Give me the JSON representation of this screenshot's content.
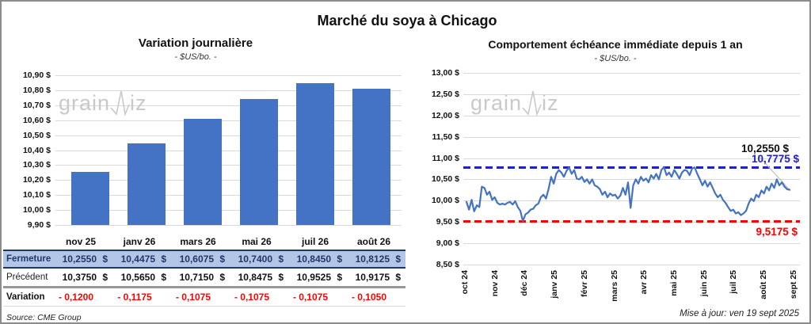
{
  "page": {
    "title": "Marché du soya à Chicago",
    "source": "Source: CME Group",
    "updated": "Mise à jour: ven 19 sept 2025",
    "watermark": {
      "pre": "grain",
      "post": "iz"
    }
  },
  "left_chart": {
    "title": "Variation journalière",
    "subtitle": "- $US/bo. -"
  },
  "right_chart": {
    "title": "Comportement échéance immédiate depuis 1 an",
    "subtitle": "- $US/bo. -",
    "annotations": {
      "last": "10,2550 $",
      "upper": "10,7775 $",
      "lower": "9,5175 $"
    }
  },
  "table": {
    "columns": [
      "nov 25",
      "janv 26",
      "mars 26",
      "mai 26",
      "juil 26",
      "août 26"
    ],
    "rows": [
      {
        "label": "Fermeture",
        "values": [
          "10,2550",
          "10,4475",
          "10,6075",
          "10,7400",
          "10,8450",
          "10,8125"
        ],
        "suffix": "$",
        "style": "close"
      },
      {
        "label": "Précédent",
        "values": [
          "10,3750",
          "10,5650",
          "10,7150",
          "10,8475",
          "10,9525",
          "10,9175"
        ],
        "suffix": "$",
        "style": "prev"
      },
      {
        "label": "Variation",
        "values": [
          "- 0,1200",
          "- 0,1175",
          "- 0,1075",
          "- 0,1075",
          "- 0,1075",
          "- 0,1050"
        ],
        "suffix": "",
        "style": "var"
      }
    ]
  },
  "chart_data": [
    {
      "type": "bar",
      "title": "Variation journalière",
      "subtitle": "- $US/bo. -",
      "categories": [
        "nov 25",
        "janv 26",
        "mars 26",
        "mai 26",
        "juil 26",
        "août 26"
      ],
      "values": [
        10.255,
        10.4475,
        10.6075,
        10.74,
        10.845,
        10.8125
      ],
      "ylabel": "$US/bo.",
      "ylim": [
        9.9,
        10.9
      ],
      "ytick_step": 0.1,
      "grid": true,
      "bar_color": "#4472C4"
    },
    {
      "type": "line",
      "title": "Comportement échéance immédiate depuis 1 an",
      "subtitle": "- $US/bo. -",
      "x_ticks": [
        "oct 24",
        "nov 24",
        "déc 24",
        "janv 25",
        "févr 25",
        "mars 25",
        "avr 25",
        "mai 25",
        "juin 25",
        "juil 25",
        "août 25",
        "sept 25"
      ],
      "ylim": [
        8.5,
        13.0
      ],
      "ytick_step": 0.5,
      "grid": true,
      "line_color": "#4472C4",
      "values": [
        9.97,
        9.79,
        10.02,
        9.75,
        9.89,
        9.85,
        10.33,
        10.3,
        10.14,
        10.21,
        10.02,
        10.08,
        9.95,
        9.91,
        9.93,
        9.91,
        9.95,
        9.97,
        9.91,
        9.99,
        9.85,
        9.76,
        9.52,
        9.68,
        9.72,
        9.79,
        9.81,
        9.89,
        9.93,
        10.08,
        10.14,
        10.05,
        10.27,
        10.56,
        10.4,
        10.63,
        10.72,
        10.66,
        10.56,
        10.7,
        10.78,
        10.63,
        10.72,
        10.52,
        10.5,
        10.56,
        10.44,
        10.5,
        10.4,
        10.5,
        10.36,
        10.33,
        10.27,
        10.14,
        10.21,
        10.08,
        10.17,
        10.12,
        10.14,
        10.05,
        10.12,
        10.3,
        10.14,
        10.43,
        9.83,
        10.36,
        10.5,
        10.4,
        10.56,
        10.47,
        10.52,
        10.43,
        10.6,
        10.52,
        10.63,
        10.5,
        10.72,
        10.79,
        10.6,
        10.66,
        10.56,
        10.72,
        10.63,
        10.52,
        10.66,
        10.72,
        10.7,
        10.6,
        10.76,
        10.78,
        10.63,
        10.5,
        10.36,
        10.47,
        10.33,
        10.43,
        10.3,
        10.17,
        10.08,
        10.14,
        10.02,
        9.95,
        9.85,
        9.76,
        9.79,
        9.7,
        9.73,
        9.66,
        9.7,
        9.76,
        9.93,
        10.05,
        9.99,
        10.14,
        10.08,
        10.24,
        10.17,
        10.33,
        10.24,
        10.4,
        10.3,
        10.5,
        10.36,
        10.43,
        10.33,
        10.27,
        10.255
      ],
      "last_value": 10.255,
      "last_label": "10,2550 $",
      "hline_upper": {
        "value": 10.7775,
        "label": "10,7775 $",
        "color": "#2020C8"
      },
      "hline_lower": {
        "value": 9.5175,
        "label": "9,5175 $",
        "color": "#FF0000"
      }
    }
  ]
}
